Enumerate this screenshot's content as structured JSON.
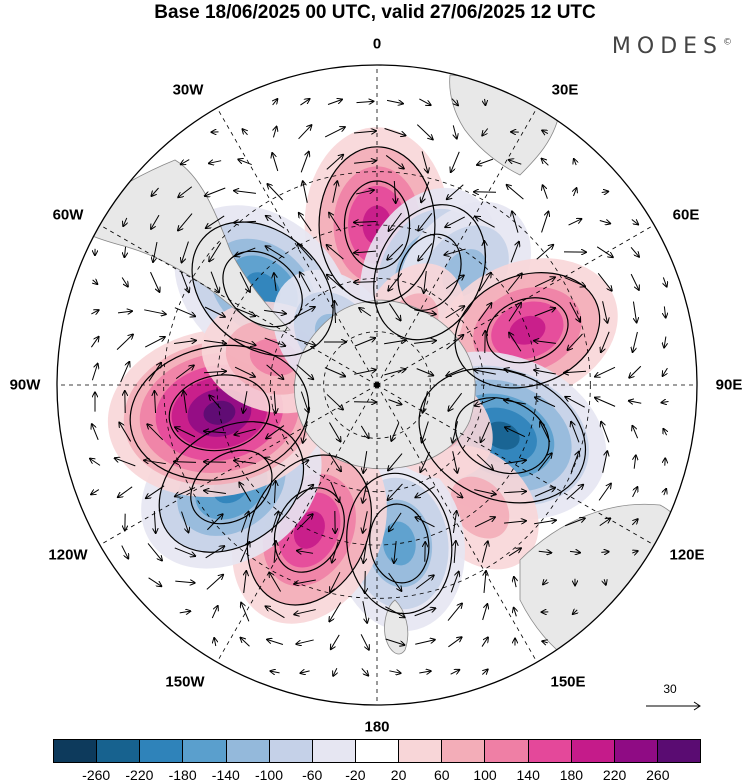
{
  "title": "Base 18/06/2025 00 UTC, valid 27/06/2025 12 UTC",
  "logo": "MODES",
  "logo_mark": "©",
  "longitude_labels": {
    "lon_0": "0",
    "lon_30e": "30E",
    "lon_60e": "60E",
    "lon_90e": "90E",
    "lon_120e": "120E",
    "lon_150e": "150E",
    "lon_180": "180",
    "lon_150w": "150W",
    "lon_120w": "120W",
    "lon_90w": "90W",
    "lon_60w": "60W",
    "lon_30w": "30W"
  },
  "reference_vector": "30",
  "colorbar": {
    "colors": [
      "#0d3a5c",
      "#17628f",
      "#2f83ba",
      "#5a9fcd",
      "#94b9db",
      "#c5d1e8",
      "#e6e6f2",
      "#ffffff",
      "#f8d6d8",
      "#f3adb8",
      "#ef7fa5",
      "#e4489a",
      "#c51b8a",
      "#8f0b84",
      "#5a0c72"
    ],
    "ticks": [
      "-260",
      "-220",
      "-180",
      "-140",
      "-100",
      "-60",
      "-20",
      "20",
      "60",
      "100",
      "140",
      "180",
      "220",
      "260"
    ]
  },
  "anomaly_centers": [
    {
      "lon": 0,
      "lat": -45,
      "value": 180
    },
    {
      "lon": 25,
      "lat": -55,
      "value": -140
    },
    {
      "lon": 38,
      "lat": -50,
      "value": -100
    },
    {
      "lon": 70,
      "lat": -45,
      "value": 160
    },
    {
      "lon": 112,
      "lat": -52,
      "value": -220
    },
    {
      "lon": 140,
      "lat": -45,
      "value": 60
    },
    {
      "lon": 172,
      "lat": -45,
      "value": -140
    },
    {
      "lon": -155,
      "lat": -45,
      "value": 180
    },
    {
      "lon": -125,
      "lat": -40,
      "value": -180
    },
    {
      "lon": -100,
      "lat": -45,
      "value": 240
    },
    {
      "lon": -50,
      "lat": -48,
      "value": -180
    },
    {
      "lon": -75,
      "lat": -60,
      "value": 80
    },
    {
      "lon": 30,
      "lat": -70,
      "value": 40
    },
    {
      "lon": -40,
      "lat": -72,
      "value": -80
    },
    {
      "lon": 125,
      "lat": -72,
      "value": 60
    }
  ]
}
